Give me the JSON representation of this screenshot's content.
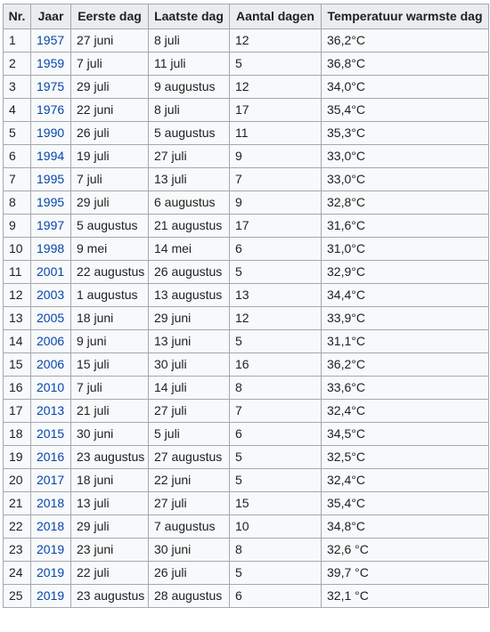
{
  "table": {
    "headers": {
      "nr": "Nr.",
      "jaar": "Jaar",
      "eerste_dag": "Eerste dag",
      "laatste_dag": "Laatste dag",
      "aantal_dagen": "Aantal dagen",
      "temperatuur": "Temperatuur warmste dag"
    },
    "rows": [
      {
        "nr": "1",
        "jaar": "1957",
        "eerste": "27 juni",
        "laatste": "8 juli",
        "aantal": "12",
        "temp": "36,2°C"
      },
      {
        "nr": "2",
        "jaar": "1959",
        "eerste": "7 juli",
        "laatste": "11 juli",
        "aantal": "5",
        "temp": "36,8°C"
      },
      {
        "nr": "3",
        "jaar": "1975",
        "eerste": "29 juli",
        "laatste": "9 augustus",
        "aantal": "12",
        "temp": "34,0°C"
      },
      {
        "nr": "4",
        "jaar": "1976",
        "eerste": "22 juni",
        "laatste": "8 juli",
        "aantal": "17",
        "temp": "35,4°C"
      },
      {
        "nr": "5",
        "jaar": "1990",
        "eerste": "26 juli",
        "laatste": "5 augustus",
        "aantal": "11",
        "temp": "35,3°C"
      },
      {
        "nr": "6",
        "jaar": "1994",
        "eerste": "19 juli",
        "laatste": "27 juli",
        "aantal": "9",
        "temp": "33,0°C"
      },
      {
        "nr": "7",
        "jaar": "1995",
        "eerste": "7 juli",
        "laatste": "13 juli",
        "aantal": "7",
        "temp": "33,0°C"
      },
      {
        "nr": "8",
        "jaar": "1995",
        "eerste": "29 juli",
        "laatste": "6 augustus",
        "aantal": "9",
        "temp": "32,8°C"
      },
      {
        "nr": "9",
        "jaar": "1997",
        "eerste": "5 augustus",
        "laatste": "21 augustus",
        "aantal": "17",
        "temp": "31,6°C"
      },
      {
        "nr": "10",
        "jaar": "1998",
        "eerste": "9 mei",
        "laatste": "14 mei",
        "aantal": "6",
        "temp": "31,0°C"
      },
      {
        "nr": "11",
        "jaar": "2001",
        "eerste": "22 augustus",
        "laatste": "26 augustus",
        "aantal": "5",
        "temp": "32,9°C"
      },
      {
        "nr": "12",
        "jaar": "2003",
        "eerste": "1 augustus",
        "laatste": "13 augustus",
        "aantal": "13",
        "temp": "34,4°C"
      },
      {
        "nr": "13",
        "jaar": "2005",
        "eerste": "18 juni",
        "laatste": "29 juni",
        "aantal": "12",
        "temp": "33,9°C"
      },
      {
        "nr": "14",
        "jaar": "2006",
        "eerste": "9 juni",
        "laatste": "13 juni",
        "aantal": "5",
        "temp": "31,1°C"
      },
      {
        "nr": "15",
        "jaar": "2006",
        "eerste": "15 juli",
        "laatste": "30 juli",
        "aantal": "16",
        "temp": "36,2°C"
      },
      {
        "nr": "16",
        "jaar": "2010",
        "eerste": "7 juli",
        "laatste": "14 juli",
        "aantal": "8",
        "temp": "33,6°C"
      },
      {
        "nr": "17",
        "jaar": "2013",
        "eerste": "21 juli",
        "laatste": "27 juli",
        "aantal": "7",
        "temp": "32,4°C"
      },
      {
        "nr": "18",
        "jaar": "2015",
        "eerste": "30 juni",
        "laatste": "5 juli",
        "aantal": "6",
        "temp": "34,5°C"
      },
      {
        "nr": "19",
        "jaar": "2016",
        "eerste": "23 augustus",
        "laatste": "27 augustus",
        "aantal": "5",
        "temp": "32,5°C"
      },
      {
        "nr": "20",
        "jaar": "2017",
        "eerste": "18 juni",
        "laatste": "22 juni",
        "aantal": "5",
        "temp": "32,4°C"
      },
      {
        "nr": "21",
        "jaar": "2018",
        "eerste": "13 juli",
        "laatste": "27 juli",
        "aantal": "15",
        "temp": "35,4°C"
      },
      {
        "nr": "22",
        "jaar": "2018",
        "eerste": "29 juli",
        "laatste": "7 augustus",
        "aantal": "10",
        "temp": "34,8°C"
      },
      {
        "nr": "23",
        "jaar": "2019",
        "eerste": "23 juni",
        "laatste": "30 juni",
        "aantal": "8",
        "temp": "32,6 °C"
      },
      {
        "nr": "24",
        "jaar": "2019",
        "eerste": "22 juli",
        "laatste": "26 juli",
        "aantal": "5",
        "temp": "39,7 °C"
      },
      {
        "nr": "25",
        "jaar": "2019",
        "eerste": "23 augustus",
        "laatste": "28 augustus",
        "aantal": "6",
        "temp": "32,1 °C"
      }
    ]
  },
  "colors": {
    "link": "#0645ad",
    "header_bg": "#eaecf0",
    "cell_bg": "#f8f9fa",
    "border": "#a2a9b1",
    "text": "#202122"
  }
}
